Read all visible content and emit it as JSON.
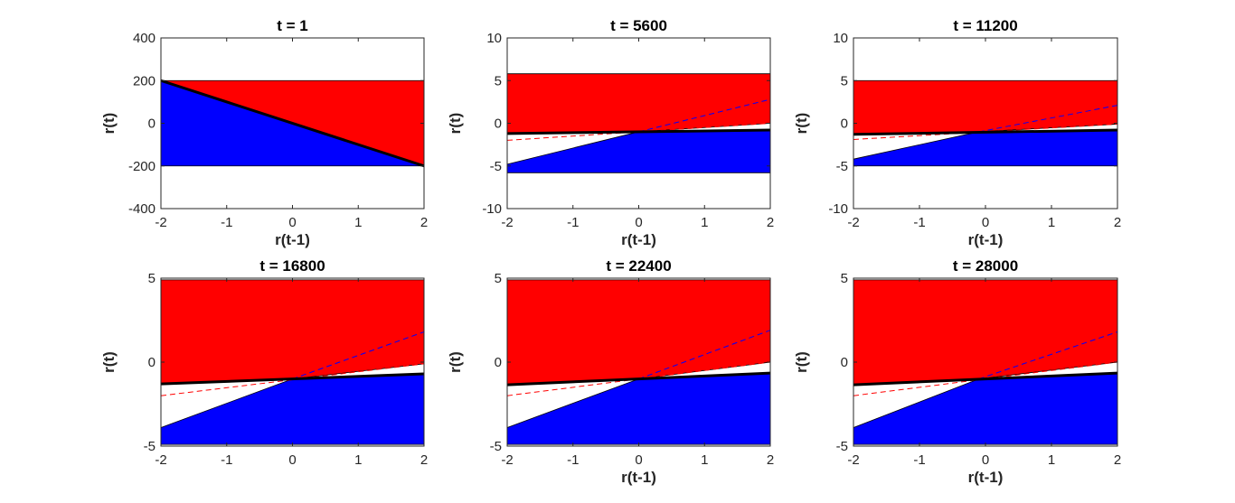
{
  "chart_data": [
    {
      "type": "area",
      "title": "t = 1",
      "xlabel": "r(t-1)",
      "ylabel": "r(t)",
      "xlim": [
        -2,
        2
      ],
      "ylim": [
        -400,
        400
      ],
      "xticks": [
        -2,
        -1,
        0,
        1,
        2
      ],
      "yticks": [
        -400,
        -200,
        0,
        200,
        400
      ],
      "band": [
        -200,
        200
      ],
      "red_boundary": [
        [
          -2,
          200
        ],
        [
          2,
          -200
        ]
      ],
      "blue_boundary": [
        [
          -2,
          200
        ],
        [
          2,
          -200
        ]
      ],
      "black_line": [
        [
          -2,
          200
        ],
        [
          2,
          -200
        ]
      ],
      "dashed_red": null,
      "dashed_blue": null
    },
    {
      "type": "area",
      "title": "t = 5600",
      "xlabel": "r(t-1)",
      "ylabel": "r(t)",
      "xlim": [
        -2,
        2
      ],
      "ylim": [
        -10,
        10
      ],
      "xticks": [
        -2,
        -1,
        0,
        1,
        2
      ],
      "yticks": [
        -10,
        -5,
        0,
        5,
        10
      ],
      "band": [
        -5.8,
        5.8
      ],
      "red_boundary": [
        [
          -2,
          -1.2
        ],
        [
          0,
          -1.0
        ],
        [
          2,
          0
        ]
      ],
      "blue_boundary": [
        [
          -2,
          -4.8
        ],
        [
          0,
          -1.0
        ],
        [
          2,
          -0.8
        ]
      ],
      "black_line": [
        [
          -2,
          -1.2
        ],
        [
          2,
          -0.8
        ]
      ],
      "dashed_red": [
        [
          -2,
          -2.0
        ],
        [
          2,
          0
        ]
      ],
      "dashed_blue": [
        [
          0,
          -1.0
        ],
        [
          2,
          2.8
        ]
      ]
    },
    {
      "type": "area",
      "title": "t = 11200",
      "xlabel": "r(t-1)",
      "ylabel": "r(t)",
      "xlim": [
        -2,
        2
      ],
      "ylim": [
        -10,
        10
      ],
      "xticks": [
        -2,
        -1,
        0,
        1,
        2
      ],
      "yticks": [
        -10,
        -5,
        0,
        5,
        10
      ],
      "band": [
        -5.0,
        5.0
      ],
      "red_boundary": [
        [
          -2,
          -1.3
        ],
        [
          -0.1,
          -1.0
        ],
        [
          2,
          -0.1
        ]
      ],
      "blue_boundary": [
        [
          -2,
          -4.2
        ],
        [
          -0.1,
          -1.0
        ],
        [
          2,
          -0.8
        ]
      ],
      "black_line": [
        [
          -2,
          -1.3
        ],
        [
          2,
          -0.8
        ]
      ],
      "dashed_red": [
        [
          -2,
          -1.9
        ],
        [
          2,
          -0.1
        ]
      ],
      "dashed_blue": [
        [
          -0.1,
          -1.0
        ],
        [
          2,
          2.1
        ]
      ]
    },
    {
      "type": "area",
      "title": "t = 16800",
      "xlabel": "",
      "ylabel": "r(t)",
      "xlim": [
        -2,
        2
      ],
      "ylim": [
        -5,
        5
      ],
      "xticks": [
        -2,
        -1,
        0,
        1,
        2
      ],
      "yticks": [
        -5,
        0,
        5
      ],
      "band": [
        -4.9,
        4.9
      ],
      "red_boundary": [
        [
          -2,
          -1.3
        ],
        [
          0,
          -1.0
        ],
        [
          2,
          -0.1
        ]
      ],
      "blue_boundary": [
        [
          -2,
          -3.9
        ],
        [
          0,
          -1.0
        ],
        [
          2,
          -0.7
        ]
      ],
      "black_line": [
        [
          -2,
          -1.3
        ],
        [
          2,
          -0.7
        ]
      ],
      "dashed_red": [
        [
          -2,
          -2.0
        ],
        [
          2,
          -0.1
        ]
      ],
      "dashed_blue": [
        [
          0,
          -1.0
        ],
        [
          2,
          1.8
        ]
      ]
    },
    {
      "type": "area",
      "title": "t = 22400",
      "xlabel": "r(t-1)",
      "ylabel": "r(t)",
      "xlim": [
        -2,
        2
      ],
      "ylim": [
        -5,
        5
      ],
      "xticks": [
        -2,
        -1,
        0,
        1,
        2
      ],
      "yticks": [
        -5,
        0,
        5
      ],
      "band": [
        -4.9,
        4.9
      ],
      "red_boundary": [
        [
          -2,
          -1.35
        ],
        [
          0,
          -1.0
        ],
        [
          2,
          0
        ]
      ],
      "blue_boundary": [
        [
          -2,
          -3.9
        ],
        [
          0,
          -1.0
        ],
        [
          2,
          -0.65
        ]
      ],
      "black_line": [
        [
          -2,
          -1.35
        ],
        [
          2,
          -0.65
        ]
      ],
      "dashed_red": [
        [
          -2,
          -2.0
        ],
        [
          2,
          0
        ]
      ],
      "dashed_blue": [
        [
          0,
          -1.0
        ],
        [
          2,
          1.9
        ]
      ]
    },
    {
      "type": "area",
      "title": "t = 28000",
      "xlabel": "r(t-1)",
      "ylabel": "r(t)",
      "xlim": [
        -2,
        2
      ],
      "ylim": [
        -5,
        5
      ],
      "xticks": [
        -2,
        -1,
        0,
        1,
        2
      ],
      "yticks": [
        -5,
        0,
        5
      ],
      "band": [
        -4.9,
        4.9
      ],
      "red_boundary": [
        [
          -2,
          -1.35
        ],
        [
          -0.1,
          -1.0
        ],
        [
          2,
          0
        ]
      ],
      "blue_boundary": [
        [
          -2,
          -3.9
        ],
        [
          -0.1,
          -1.0
        ],
        [
          2,
          -0.65
        ]
      ],
      "black_line": [
        [
          -2,
          -1.35
        ],
        [
          2,
          -0.65
        ]
      ],
      "dashed_red": [
        [
          -2,
          -2.0
        ],
        [
          2,
          0
        ]
      ],
      "dashed_blue": [
        [
          -0.1,
          -1.0
        ],
        [
          2,
          1.8
        ]
      ]
    }
  ],
  "colors": {
    "upper_region": "#ff0000",
    "lower_region": "#0000ff",
    "boundary": "#000000",
    "dashed_red": "#ff0000",
    "dashed_blue": "#0000ff",
    "axis": "#262626"
  }
}
